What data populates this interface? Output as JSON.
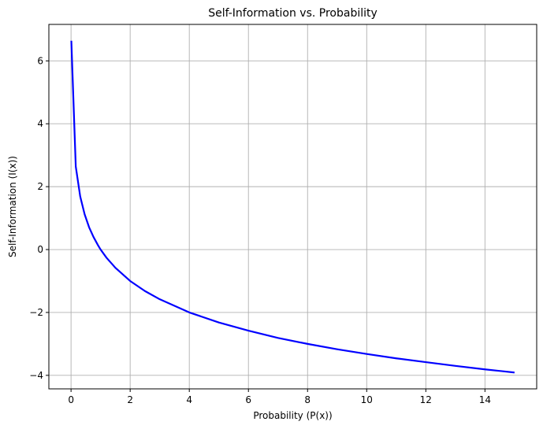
{
  "chart_data": {
    "type": "line",
    "title": "Self-Information vs. Probability",
    "xlabel": "Probability (P(x))",
    "ylabel": "Self-Information (I(x))",
    "xlim": [
      -0.75,
      15.75
    ],
    "ylim": [
      -4.43,
      7.16
    ],
    "xticks": [
      0,
      2,
      4,
      6,
      8,
      10,
      12,
      14
    ],
    "yticks": [
      -4,
      -2,
      0,
      2,
      4,
      6
    ],
    "grid": true,
    "legend": "none",
    "series": [
      {
        "color": "#0000ff",
        "x": [
          0.01,
          0.16,
          0.31,
          0.46,
          0.61,
          0.76,
          0.91,
          1.0,
          1.2,
          1.5,
          2,
          2.5,
          3,
          4,
          5,
          6,
          7,
          8,
          9,
          10,
          11,
          12,
          13,
          14,
          15
        ],
        "y": [
          6.64,
          2.64,
          1.69,
          1.12,
          0.71,
          0.4,
          0.14,
          0.0,
          -0.26,
          -0.58,
          -1.0,
          -1.32,
          -1.58,
          -2.0,
          -2.32,
          -2.58,
          -2.81,
          -3.0,
          -3.17,
          -3.32,
          -3.46,
          -3.58,
          -3.7,
          -3.81,
          -3.91
        ]
      }
    ]
  }
}
